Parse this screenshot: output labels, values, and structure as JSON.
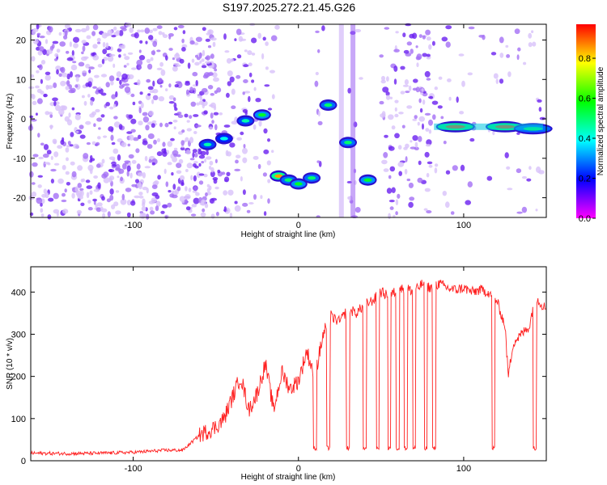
{
  "chart_data": [
    {
      "type": "heatmap",
      "title": "S197.2025.272.21.45.G26",
      "xlabel": "Height of straight line (km)",
      "ylabel": "Frequency (Hz)",
      "xlim": [
        -162,
        150
      ],
      "ylim": [
        -25,
        24
      ],
      "xticks": [
        -100,
        0,
        100
      ],
      "yticks": [
        -20,
        -10,
        0,
        10,
        20
      ],
      "colorbar": {
        "label": "Normalized spectral amplitude",
        "range": [
          0.0,
          0.97
        ],
        "ticks": [
          0.0,
          0.2,
          0.4,
          0.6,
          0.8
        ],
        "colormap": [
          "#ff00ff",
          "#0000ff",
          "#00ffff",
          "#00ff00",
          "#ffff00",
          "#ff0000"
        ]
      },
      "blobs": [
        {
          "x": -12,
          "y": -14.5,
          "amp": 0.85
        },
        {
          "x": -6,
          "y": -15.5,
          "amp": 0.5
        },
        {
          "x": 0,
          "y": -16.5,
          "amp": 0.55
        },
        {
          "x": 8,
          "y": -15,
          "amp": 0.5
        },
        {
          "x": 18,
          "y": 3.5,
          "amp": 0.5
        },
        {
          "x": 30,
          "y": -6,
          "amp": 0.5
        },
        {
          "x": 42,
          "y": -15.5,
          "amp": 0.55
        },
        {
          "x": -22,
          "y": 1,
          "amp": 0.55
        },
        {
          "x": -32,
          "y": -0.5,
          "amp": 0.45
        },
        {
          "x": -45,
          "y": -5,
          "amp": 0.4
        },
        {
          "x": -55,
          "y": -6.5,
          "amp": 0.45
        },
        {
          "x": 95,
          "y": -2,
          "amp": 0.9
        },
        {
          "x": 125,
          "y": -2,
          "amp": 0.9
        },
        {
          "x": 142,
          "y": -2.5,
          "amp": 0.5
        }
      ]
    },
    {
      "type": "line",
      "xlabel": "Height of straight line (km)",
      "ylabel": "SNR (10 * v/v)",
      "xlim": [
        -162,
        150
      ],
      "ylim": [
        0,
        460
      ],
      "xticks": [
        -100,
        0,
        100
      ],
      "yticks": [
        0,
        100,
        200,
        300,
        400
      ],
      "series": [
        {
          "name": "SNR",
          "color": "#ff2020",
          "x": [
            -162,
            -140,
            -120,
            -100,
            -80,
            -70,
            -60,
            -50,
            -45,
            -40,
            -35,
            -30,
            -25,
            -20,
            -15,
            -10,
            -5,
            0,
            5,
            10,
            15,
            20,
            25,
            30,
            35,
            40,
            45,
            50,
            55,
            60,
            65,
            70,
            75,
            80,
            85,
            90,
            95,
            100,
            105,
            110,
            115,
            120,
            125,
            127,
            130,
            135,
            140,
            143,
            145,
            150
          ],
          "y": [
            18,
            17,
            18,
            20,
            25,
            25,
            60,
            80,
            100,
            150,
            200,
            120,
            160,
            230,
            120,
            210,
            170,
            190,
            260,
            200,
            300,
            340,
            330,
            360,
            350,
            370,
            380,
            400,
            390,
            405,
            410,
            400,
            420,
            410,
            420,
            410,
            405,
            410,
            400,
            405,
            400,
            380,
            320,
            200,
            280,
            300,
            320,
            390,
            380,
            360
          ]
        }
      ],
      "dropouts": [
        10,
        18,
        30,
        40,
        48,
        55,
        60,
        65,
        70,
        77,
        82,
        118,
        143
      ]
    }
  ]
}
